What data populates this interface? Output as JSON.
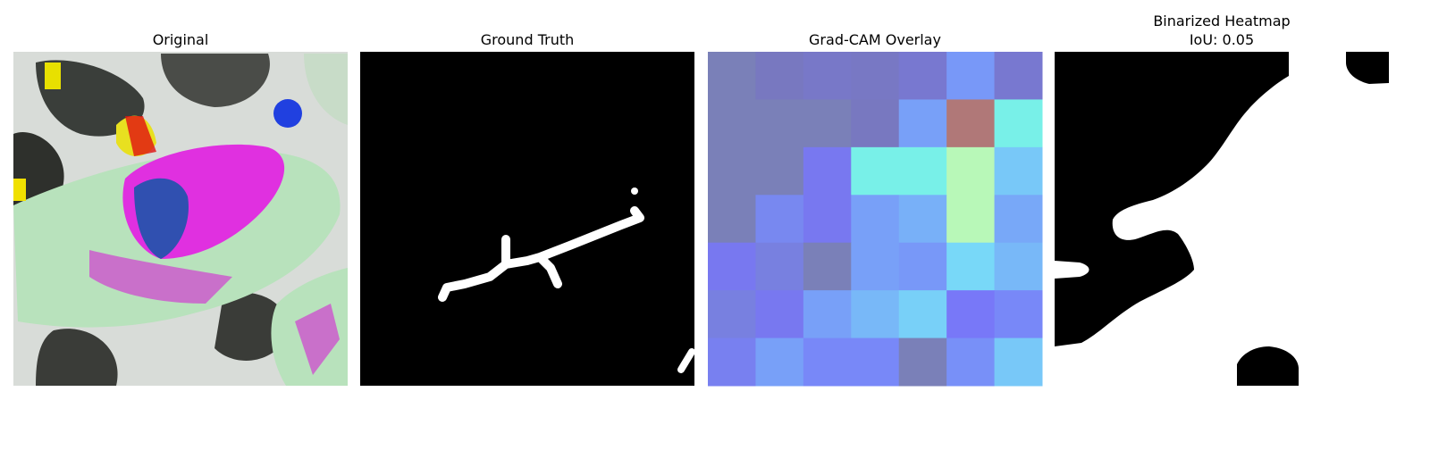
{
  "panels": [
    {
      "title": [
        "Original"
      ]
    },
    {
      "title": [
        "Ground Truth"
      ]
    },
    {
      "title": [
        "Grad-CAM Overlay"
      ]
    },
    {
      "title": [
        "Binarized Heatmap",
        "IoU: 0.05"
      ]
    }
  ]
}
